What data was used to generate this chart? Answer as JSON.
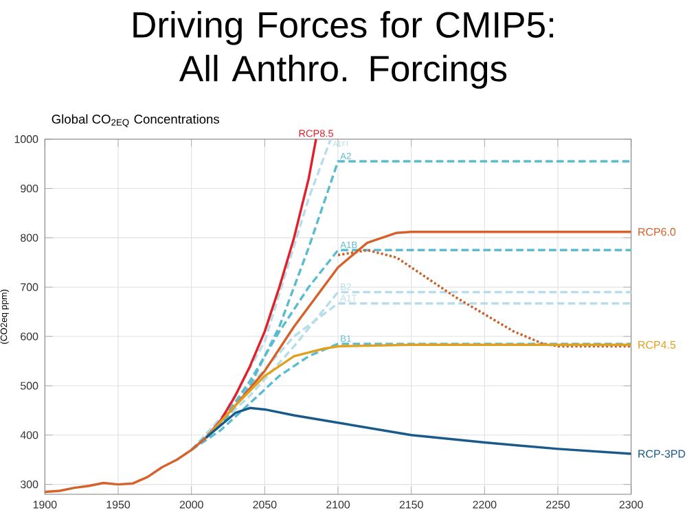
{
  "chart_data": {
    "type": "line",
    "title": "Driving Forces for CMIP5: All Anthro. Forcings",
    "subtitle": "Global CO$_{2EQ}$ Concentrations",
    "ylabel": "(CO2eq ppm)",
    "xlim": [
      1900,
      2300
    ],
    "ylim": [
      280,
      1000
    ],
    "xticks": [
      1900,
      1950,
      2000,
      2050,
      2100,
      2150,
      2200,
      2250,
      2300
    ],
    "yticks": [
      300,
      400,
      500,
      600,
      700,
      800,
      900,
      1000
    ],
    "grid": true,
    "legend": false,
    "series": [
      {
        "name": "A1FI",
        "color": "#b8dde8",
        "line_style": "dashed",
        "x": [
          2000,
          2020,
          2050,
          2080,
          2095
        ],
        "values": [
          370,
          430,
          590,
          880,
          1000
        ]
      },
      {
        "name": "B2",
        "color": "#b8dde8",
        "line_style": "dashed",
        "x": [
          2000,
          2040,
          2070,
          2100,
          2300
        ],
        "values": [
          370,
          480,
          580,
          690,
          690
        ]
      },
      {
        "name": "A1T",
        "color": "#b8dde8",
        "line_style": "dashed",
        "x": [
          2000,
          2040,
          2070,
          2100,
          2300
        ],
        "values": [
          370,
          500,
          600,
          667,
          667
        ]
      },
      {
        "name": "A2",
        "color": "#5bbcd0",
        "line_style": "dashed",
        "x": [
          2000,
          2020,
          2040,
          2060,
          2080,
          2100,
          2300
        ],
        "values": [
          370,
          420,
          500,
          620,
          780,
          955,
          955
        ]
      },
      {
        "name": "A1B",
        "color": "#5bbcd0",
        "line_style": "dashed",
        "x": [
          2000,
          2020,
          2040,
          2060,
          2080,
          2100,
          2300
        ],
        "values": [
          370,
          425,
          510,
          610,
          700,
          775,
          775
        ]
      },
      {
        "name": "B1",
        "color": "#5bbcd0",
        "line_style": "dashed",
        "x": [
          2000,
          2020,
          2040,
          2060,
          2080,
          2100,
          2300
        ],
        "values": [
          370,
          410,
          465,
          520,
          560,
          585,
          585
        ]
      },
      {
        "color": "#c8602a",
        "line_style": "dotted",
        "x": [
          2100,
          2120,
          2140,
          2160,
          2180,
          2200,
          2220,
          2240,
          2250,
          2300
        ],
        "values": [
          765,
          775,
          760,
          720,
          680,
          645,
          610,
          585,
          580,
          580
        ]
      },
      {
        "name": "RCP8.5",
        "color": "#e0202a",
        "line_style": "solid",
        "x": [
          2010,
          2020,
          2030,
          2040,
          2050,
          2060,
          2070,
          2080,
          2085
        ],
        "values": [
          395,
          430,
          480,
          540,
          610,
          700,
          800,
          920,
          1000
        ]
      },
      {
        "name": "RCP6.0",
        "color": "#d4622a",
        "line_style": "solid",
        "x": [
          1900,
          1910,
          1920,
          1930,
          1940,
          1950,
          1960,
          1970,
          1980,
          1990,
          2000,
          2010,
          2030,
          2050,
          2070,
          2090,
          2100,
          2120,
          2140,
          2150,
          2300
        ],
        "values": [
          285,
          287,
          293,
          297,
          303,
          300,
          302,
          315,
          335,
          350,
          370,
          395,
          460,
          530,
          620,
          700,
          740,
          790,
          810,
          812,
          812
        ]
      },
      {
        "name": "RCP4.5",
        "color": "#e0a020",
        "line_style": "solid",
        "x": [
          2010,
          2030,
          2050,
          2070,
          2090,
          2100,
          2150,
          2300
        ],
        "values": [
          395,
          460,
          520,
          560,
          575,
          580,
          583,
          583
        ]
      },
      {
        "name": "RCP-3PD",
        "color": "#1a5a8a",
        "line_style": "solid",
        "x": [
          2010,
          2030,
          2040,
          2050,
          2070,
          2100,
          2150,
          2200,
          2250,
          2300
        ],
        "values": [
          395,
          445,
          455,
          452,
          440,
          425,
          400,
          385,
          372,
          362
        ]
      }
    ]
  }
}
